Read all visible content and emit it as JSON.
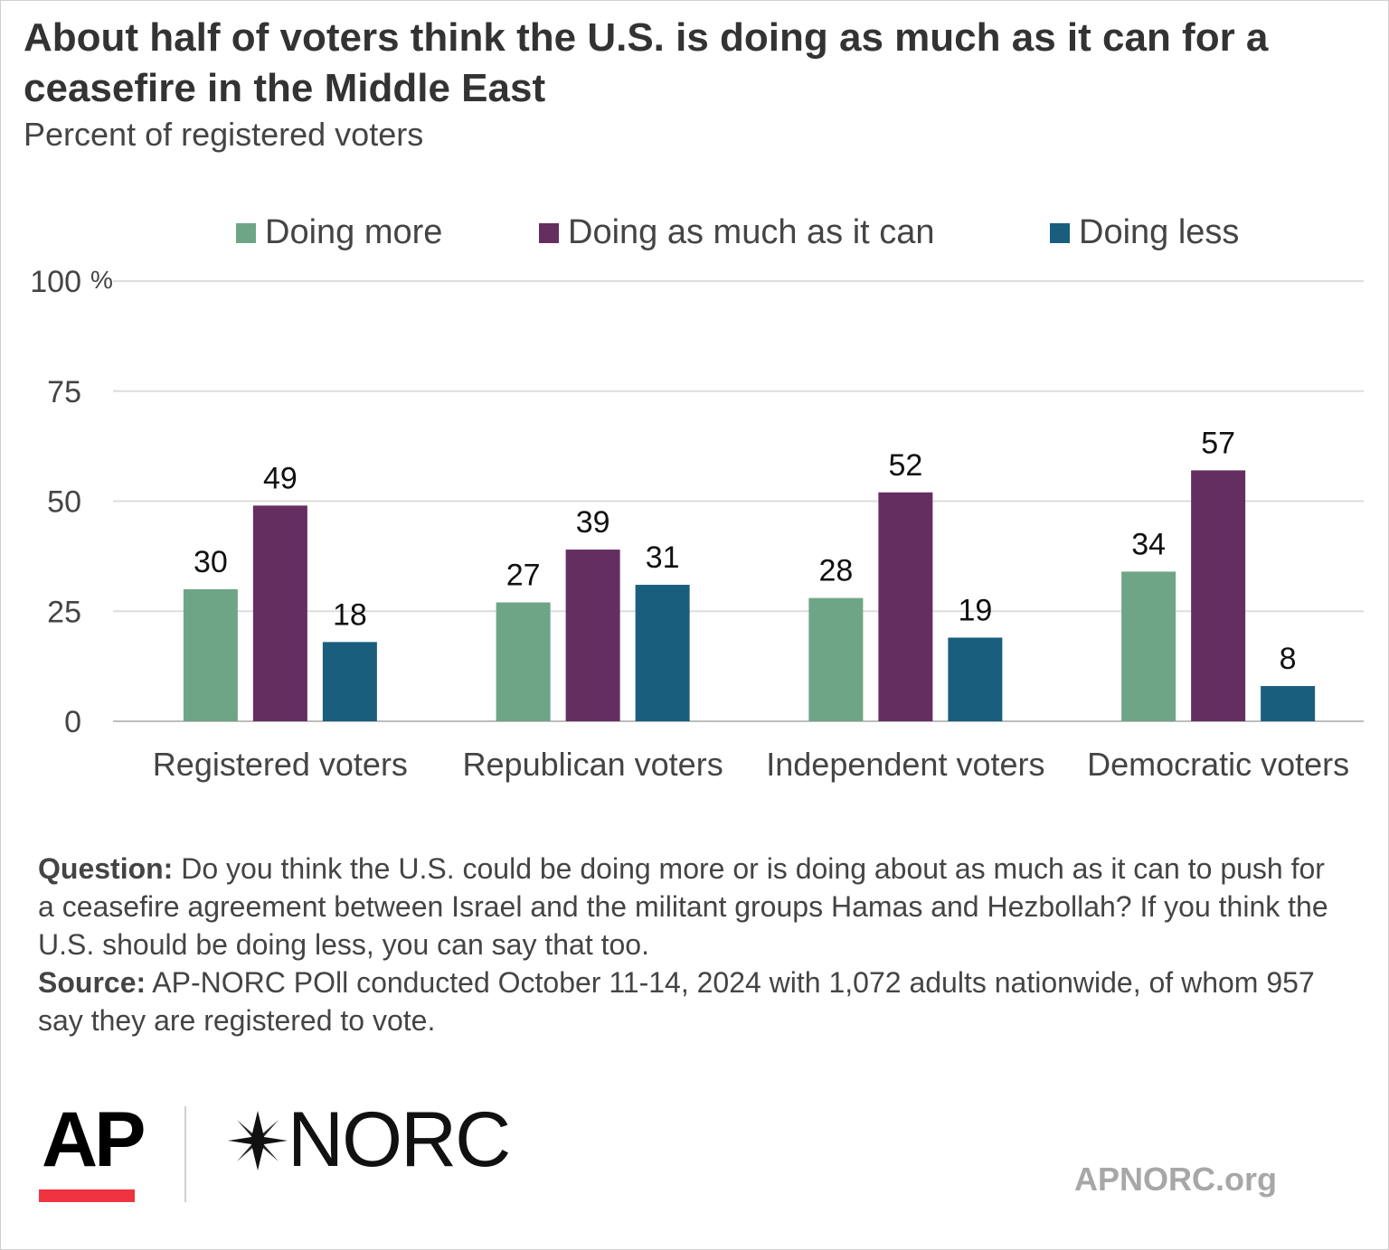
{
  "title": "About half of voters think the U.S. is doing as much as it can for a ceasefire in the Middle East",
  "subtitle": "Percent of registered voters",
  "colors": {
    "doing_more": "#6fa587",
    "as_much": "#652e60",
    "doing_less": "#1a5e7e",
    "brand_red": "#ef3340"
  },
  "legend": [
    {
      "label": "Doing more",
      "color": "#6fa587"
    },
    {
      "label": "Doing as much as it can",
      "color": "#652e60"
    },
    {
      "label": "Doing less",
      "color": "#1a5e7e"
    }
  ],
  "chart_data": {
    "type": "bar",
    "categories": [
      "Registered voters",
      "Republican voters",
      "Independent voters",
      "Democratic voters"
    ],
    "series": [
      {
        "name": "Doing more",
        "values": [
          30,
          27,
          28,
          34
        ],
        "color": "#6fa587"
      },
      {
        "name": "Doing as much as it can",
        "values": [
          49,
          39,
          52,
          57
        ],
        "color": "#652e60"
      },
      {
        "name": "Doing less",
        "values": [
          18,
          31,
          19,
          8
        ],
        "color": "#1a5e7e"
      }
    ],
    "ylim": [
      0,
      100
    ],
    "yticks": [
      0,
      25,
      50,
      75,
      100
    ],
    "ytick_labels": [
      "0",
      "25",
      "50",
      "75",
      "100"
    ],
    "y_unit": "%",
    "grid": true,
    "legend_position": "top"
  },
  "notes": {
    "question_label": "Question:",
    "question_text": " Do you think the U.S. could be doing more or is doing about as much as it can to push for a ceasefire agreement between Israel and the militant groups Hamas and Hezbollah? If you think the U.S. should be doing less, you can say that too.",
    "source_label": "Source:",
    "source_text": " AP-NORC POll conducted October 11-14, 2024 with 1,072 adults nationwide, of whom 957 say they are registered to vote."
  },
  "logos": {
    "ap": "AP",
    "norc": "NORC",
    "site": "APNORC.org"
  }
}
